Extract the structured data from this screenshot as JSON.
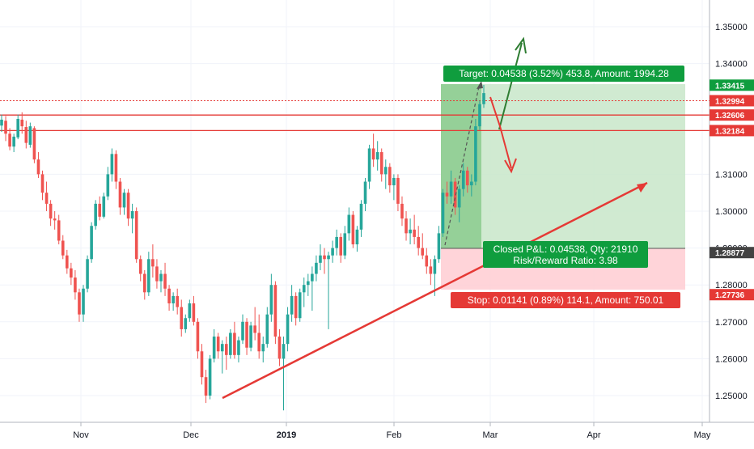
{
  "chart_data": {
    "type": "candlestick",
    "symbol_pair_axis": "price",
    "y_ticks": [
      "1.35000",
      "1.34000",
      "1.31000",
      "1.30000",
      "1.29000",
      "1.28000",
      "1.27000",
      "1.26000",
      "1.25000"
    ],
    "x_ticks": [
      "Nov",
      "Dec",
      "2019",
      "Feb",
      "Mar",
      "Apr",
      "May"
    ],
    "ylim": [
      1.243,
      1.356
    ],
    "colors": {
      "up": "#26a69a",
      "down": "#ef5350",
      "target_zone": "#a5d6a7",
      "target_zone_dark": "#81c784",
      "stop_zone": "#ffcdd2",
      "trend": "#e53935",
      "green_arrow": "#2e7d32"
    },
    "price_levels": [
      {
        "label": "1.33415",
        "value": 1.33415,
        "color": "#0f9d3e",
        "line": false
      },
      {
        "label": "1.32994",
        "value": 1.32994,
        "color": "#e53935",
        "line": true,
        "dashed": true
      },
      {
        "label": "1.32606",
        "value": 1.32606,
        "color": "#e53935",
        "line": true
      },
      {
        "label": "1.32184",
        "value": 1.32184,
        "color": "#e53935",
        "line": true
      },
      {
        "label": "1.28877",
        "value": 1.28877,
        "color": "#424242",
        "line": false
      },
      {
        "label": "1.27736",
        "value": 1.27736,
        "color": "#e53935",
        "line": false
      }
    ],
    "candles": [
      [
        1.3232,
        1.3262,
        1.3215,
        1.3248
      ],
      [
        1.3245,
        1.3258,
        1.319,
        1.321
      ],
      [
        1.321,
        1.3225,
        1.3165,
        1.3175
      ],
      [
        1.3175,
        1.321,
        1.316,
        1.3202
      ],
      [
        1.32,
        1.3262,
        1.3195,
        1.325
      ],
      [
        1.3248,
        1.3268,
        1.321,
        1.323
      ],
      [
        1.3228,
        1.3245,
        1.317,
        1.3185
      ],
      [
        1.318,
        1.324,
        1.3172,
        1.323
      ],
      [
        1.3225,
        1.323,
        1.313,
        1.314
      ],
      [
        1.314,
        1.316,
        1.309,
        1.31
      ],
      [
        1.31,
        1.311,
        1.303,
        1.305
      ],
      [
        1.305,
        1.308,
        1.3,
        1.302
      ],
      [
        1.302,
        1.303,
        1.296,
        1.298
      ],
      [
        1.298,
        1.3,
        1.295,
        1.2975
      ],
      [
        1.2975,
        1.299,
        1.291,
        1.292
      ],
      [
        1.292,
        1.2935,
        1.287,
        1.288
      ],
      [
        1.288,
        1.2895,
        1.283,
        1.2845
      ],
      [
        1.2845,
        1.286,
        1.28,
        1.282
      ],
      [
        1.282,
        1.284,
        1.276,
        1.278
      ],
      [
        1.278,
        1.279,
        1.27,
        1.272
      ],
      [
        1.272,
        1.28,
        1.27,
        1.279
      ],
      [
        1.279,
        1.288,
        1.278,
        1.287
      ],
      [
        1.287,
        1.297,
        1.286,
        1.296
      ],
      [
        1.296,
        1.303,
        1.295,
        1.302
      ],
      [
        1.302,
        1.304,
        1.2975,
        1.2985
      ],
      [
        1.2985,
        1.305,
        1.298,
        1.304
      ],
      [
        1.304,
        1.312,
        1.303,
        1.31
      ],
      [
        1.31,
        1.317,
        1.308,
        1.3155
      ],
      [
        1.3155,
        1.3165,
        1.306,
        1.308
      ],
      [
        1.308,
        1.309,
        1.299,
        1.301
      ],
      [
        1.301,
        1.306,
        1.299,
        1.305
      ],
      [
        1.305,
        1.306,
        1.296,
        1.298
      ],
      [
        1.298,
        1.302,
        1.294,
        1.3
      ],
      [
        1.3,
        1.301,
        1.286,
        1.287
      ],
      [
        1.287,
        1.288,
        1.281,
        1.283
      ],
      [
        1.283,
        1.284,
        1.276,
        1.278
      ],
      [
        1.278,
        1.289,
        1.277,
        1.287
      ],
      [
        1.287,
        1.291,
        1.282,
        1.285
      ],
      [
        1.285,
        1.287,
        1.279,
        1.281
      ],
      [
        1.281,
        1.284,
        1.278,
        1.283
      ],
      [
        1.283,
        1.286,
        1.277,
        1.279
      ],
      [
        1.279,
        1.28,
        1.273,
        1.275
      ],
      [
        1.275,
        1.278,
        1.273,
        1.277
      ],
      [
        1.277,
        1.279,
        1.272,
        1.274
      ],
      [
        1.274,
        1.276,
        1.266,
        1.268
      ],
      [
        1.268,
        1.272,
        1.267,
        1.271
      ],
      [
        1.271,
        1.276,
        1.27,
        1.275
      ],
      [
        1.275,
        1.277,
        1.269,
        1.27
      ],
      [
        1.27,
        1.271,
        1.26,
        1.262
      ],
      [
        1.262,
        1.264,
        1.253,
        1.255
      ],
      [
        1.255,
        1.257,
        1.248,
        1.25
      ],
      [
        1.25,
        1.261,
        1.249,
        1.26
      ],
      [
        1.26,
        1.268,
        1.259,
        1.266
      ],
      [
        1.266,
        1.267,
        1.26,
        1.262
      ],
      [
        1.262,
        1.265,
        1.256,
        1.264
      ],
      [
        1.264,
        1.266,
        1.257,
        1.261
      ],
      [
        1.261,
        1.268,
        1.26,
        1.267
      ],
      [
        1.267,
        1.27,
        1.26,
        1.261
      ],
      [
        1.261,
        1.266,
        1.259,
        1.265
      ],
      [
        1.265,
        1.272,
        1.264,
        1.27
      ],
      [
        1.27,
        1.271,
        1.261,
        1.263
      ],
      [
        1.263,
        1.27,
        1.262,
        1.269
      ],
      [
        1.269,
        1.274,
        1.265,
        1.267
      ],
      [
        1.267,
        1.272,
        1.26,
        1.262
      ],
      [
        1.262,
        1.266,
        1.259,
        1.264
      ],
      [
        1.264,
        1.274,
        1.263,
        1.272
      ],
      [
        1.272,
        1.283,
        1.27,
        1.28
      ],
      [
        1.28,
        1.281,
        1.264,
        1.266
      ],
      [
        1.266,
        1.268,
        1.258,
        1.26
      ],
      [
        1.26,
        1.266,
        1.246,
        1.264
      ],
      [
        1.264,
        1.274,
        1.262,
        1.272
      ],
      [
        1.272,
        1.28,
        1.27,
        1.277
      ],
      [
        1.277,
        1.278,
        1.269,
        1.271
      ],
      [
        1.271,
        1.279,
        1.27,
        1.278
      ],
      [
        1.278,
        1.282,
        1.274,
        1.28
      ],
      [
        1.28,
        1.283,
        1.277,
        1.281
      ],
      [
        1.281,
        1.285,
        1.273,
        1.283
      ],
      [
        1.283,
        1.288,
        1.281,
        1.286
      ],
      [
        1.286,
        1.291,
        1.284,
        1.288
      ],
      [
        1.288,
        1.29,
        1.283,
        1.287
      ],
      [
        1.287,
        1.289,
        1.268,
        1.288
      ],
      [
        1.288,
        1.292,
        1.286,
        1.29
      ],
      [
        1.29,
        1.295,
        1.288,
        1.293
      ],
      [
        1.293,
        1.294,
        1.286,
        1.288
      ],
      [
        1.288,
        1.296,
        1.287,
        1.294
      ],
      [
        1.294,
        1.301,
        1.292,
        1.299
      ],
      [
        1.299,
        1.3,
        1.29,
        1.291
      ],
      [
        1.291,
        1.296,
        1.289,
        1.295
      ],
      [
        1.295,
        1.303,
        1.293,
        1.302
      ],
      [
        1.302,
        1.309,
        1.3,
        1.308
      ],
      [
        1.308,
        1.318,
        1.306,
        1.317
      ],
      [
        1.317,
        1.321,
        1.312,
        1.314
      ],
      [
        1.314,
        1.319,
        1.311,
        1.316
      ],
      [
        1.316,
        1.317,
        1.308,
        1.31
      ],
      [
        1.31,
        1.314,
        1.306,
        1.312
      ],
      [
        1.312,
        1.313,
        1.305,
        1.307
      ],
      [
        1.307,
        1.31,
        1.303,
        1.309
      ],
      [
        1.309,
        1.31,
        1.3,
        1.302
      ],
      [
        1.302,
        1.304,
        1.296,
        1.298
      ],
      [
        1.298,
        1.3,
        1.292,
        1.294
      ],
      [
        1.294,
        1.298,
        1.291,
        1.295
      ],
      [
        1.295,
        1.299,
        1.291,
        1.293
      ],
      [
        1.293,
        1.296,
        1.288,
        1.29
      ],
      [
        1.29,
        1.294,
        1.287,
        1.288
      ],
      [
        1.288,
        1.29,
        1.283,
        1.285
      ],
      [
        1.285,
        1.287,
        1.28,
        1.283
      ],
      [
        1.283,
        1.288,
        1.277,
        1.287
      ],
      [
        1.287,
        1.296,
        1.286,
        1.294
      ],
      [
        1.294,
        1.306,
        1.293,
        1.305
      ],
      [
        1.305,
        1.308,
        1.302,
        1.304
      ],
      [
        1.304,
        1.311,
        1.302,
        1.308
      ],
      [
        1.308,
        1.309,
        1.299,
        1.301
      ],
      [
        1.301,
        1.307,
        1.297,
        1.306
      ],
      [
        1.306,
        1.313,
        1.304,
        1.311
      ],
      [
        1.311,
        1.312,
        1.305,
        1.307
      ],
      [
        1.307,
        1.31,
        1.304,
        1.308
      ],
      [
        1.308,
        1.325,
        1.307,
        1.323
      ],
      [
        1.323,
        1.33,
        1.322,
        1.329
      ],
      [
        1.329,
        1.3342,
        1.328,
        1.332
      ]
    ]
  },
  "position_labels": {
    "target": "Target: 0.04538 (3.52%) 453.8, Amount: 1994.28",
    "stop": "Stop: 0.01141 (0.89%) 114.1, Amount: 750.01",
    "closed_line1": "Closed P&L: 0.04538, Qty: 21910",
    "closed_line2": "Risk/Reward Ratio: 3.98"
  }
}
